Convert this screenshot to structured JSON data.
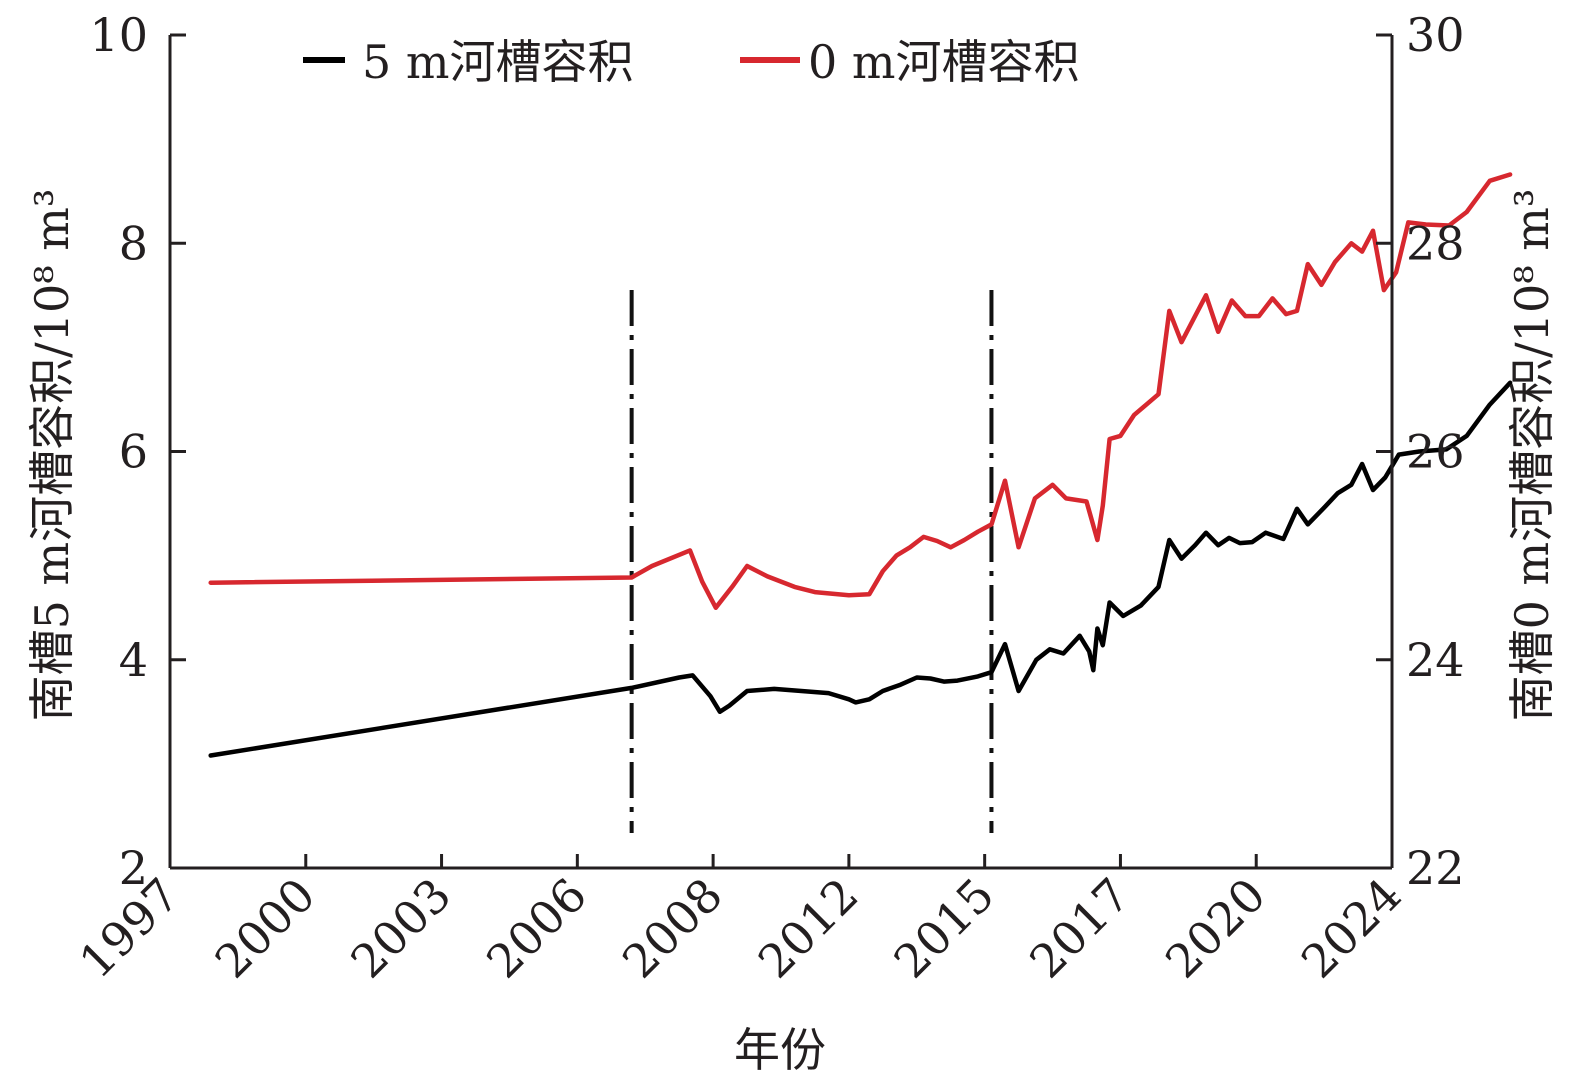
{
  "chart_data": {
    "type": "line",
    "title": "",
    "xlabel": "年份",
    "ylabel_left": "南槽5 m河槽容积/10⁸ m³",
    "ylabel_right": "南槽0 m河槽容积/10⁸ m³",
    "x_tick_labels": [
      "1997",
      "2000",
      "2003",
      "2006",
      "2008",
      "2012",
      "2015",
      "2017",
      "2020",
      "2024"
    ],
    "ylim_left": [
      2,
      10
    ],
    "yticks_left": [
      "2",
      "4",
      "6",
      "8",
      "10"
    ],
    "ylim_right": [
      22,
      30
    ],
    "yticks_right": [
      "22",
      "24",
      "26",
      "28",
      "30"
    ],
    "legend_position": "top",
    "vertical_markers": [
      3.4,
      6.05
    ],
    "series": [
      {
        "name": "5 m河槽容积",
        "axis": "left",
        "color": "#000000",
        "points": [
          [
            0.3,
            3.08
          ],
          [
            3.4,
            3.73
          ],
          [
            3.75,
            3.83
          ],
          [
            3.85,
            3.85
          ],
          [
            3.98,
            3.65
          ],
          [
            4.05,
            3.5
          ],
          [
            4.12,
            3.56
          ],
          [
            4.25,
            3.7
          ],
          [
            4.45,
            3.72
          ],
          [
            4.65,
            3.7
          ],
          [
            4.85,
            3.68
          ],
          [
            5.0,
            3.62
          ],
          [
            5.05,
            3.59
          ],
          [
            5.15,
            3.62
          ],
          [
            5.25,
            3.7
          ],
          [
            5.38,
            3.76
          ],
          [
            5.5,
            3.83
          ],
          [
            5.6,
            3.82
          ],
          [
            5.7,
            3.79
          ],
          [
            5.8,
            3.8
          ],
          [
            5.95,
            3.84
          ],
          [
            6.05,
            3.88
          ],
          [
            6.15,
            4.15
          ],
          [
            6.25,
            3.7
          ],
          [
            6.38,
            4.0
          ],
          [
            6.48,
            4.1
          ],
          [
            6.58,
            4.06
          ],
          [
            6.7,
            4.23
          ],
          [
            6.77,
            4.08
          ],
          [
            6.8,
            3.9
          ],
          [
            6.83,
            4.3
          ],
          [
            6.87,
            4.14
          ],
          [
            6.92,
            4.55
          ],
          [
            7.02,
            4.42
          ],
          [
            7.15,
            4.52
          ],
          [
            7.28,
            4.7
          ],
          [
            7.36,
            5.15
          ],
          [
            7.45,
            4.97
          ],
          [
            7.55,
            5.1
          ],
          [
            7.63,
            5.22
          ],
          [
            7.72,
            5.1
          ],
          [
            7.8,
            5.17
          ],
          [
            7.88,
            5.12
          ],
          [
            7.97,
            5.13
          ],
          [
            8.07,
            5.22
          ],
          [
            8.2,
            5.16
          ],
          [
            8.3,
            5.45
          ],
          [
            8.38,
            5.3
          ],
          [
            8.5,
            5.46
          ],
          [
            8.6,
            5.6
          ],
          [
            8.7,
            5.68
          ],
          [
            8.78,
            5.88
          ],
          [
            8.86,
            5.63
          ],
          [
            8.95,
            5.75
          ],
          [
            9.05,
            5.97
          ],
          [
            9.2,
            6.0
          ],
          [
            9.4,
            6.02
          ],
          [
            9.55,
            6.15
          ],
          [
            9.72,
            6.45
          ],
          [
            9.87,
            6.66
          ]
        ]
      },
      {
        "name": "0 m河槽容积",
        "axis": "right",
        "color": "#d7282f",
        "points": [
          [
            0.3,
            24.74
          ],
          [
            3.4,
            24.79
          ],
          [
            3.55,
            24.9
          ],
          [
            3.83,
            25.05
          ],
          [
            3.92,
            24.75
          ],
          [
            4.02,
            24.5
          ],
          [
            4.14,
            24.7
          ],
          [
            4.25,
            24.9
          ],
          [
            4.4,
            24.8
          ],
          [
            4.6,
            24.7
          ],
          [
            4.75,
            24.65
          ],
          [
            5.0,
            24.62
          ],
          [
            5.15,
            24.63
          ],
          [
            5.25,
            24.85
          ],
          [
            5.35,
            25.0
          ],
          [
            5.45,
            25.08
          ],
          [
            5.55,
            25.18
          ],
          [
            5.65,
            25.14
          ],
          [
            5.75,
            25.08
          ],
          [
            5.85,
            25.15
          ],
          [
            5.95,
            25.23
          ],
          [
            6.05,
            25.3
          ],
          [
            6.15,
            25.72
          ],
          [
            6.25,
            25.08
          ],
          [
            6.37,
            25.55
          ],
          [
            6.5,
            25.68
          ],
          [
            6.6,
            25.55
          ],
          [
            6.75,
            25.52
          ],
          [
            6.83,
            25.15
          ],
          [
            6.87,
            25.48
          ],
          [
            6.92,
            26.12
          ],
          [
            7.0,
            26.15
          ],
          [
            7.1,
            26.35
          ],
          [
            7.28,
            26.55
          ],
          [
            7.36,
            27.35
          ],
          [
            7.45,
            27.05
          ],
          [
            7.55,
            27.3
          ],
          [
            7.63,
            27.5
          ],
          [
            7.72,
            27.15
          ],
          [
            7.82,
            27.45
          ],
          [
            7.92,
            27.3
          ],
          [
            8.02,
            27.3
          ],
          [
            8.12,
            27.47
          ],
          [
            8.22,
            27.32
          ],
          [
            8.3,
            27.35
          ],
          [
            8.38,
            27.8
          ],
          [
            8.48,
            27.6
          ],
          [
            8.58,
            27.82
          ],
          [
            8.7,
            28.0
          ],
          [
            8.78,
            27.92
          ],
          [
            8.86,
            28.12
          ],
          [
            8.94,
            27.55
          ],
          [
            9.03,
            27.72
          ],
          [
            9.12,
            28.2
          ],
          [
            9.25,
            28.18
          ],
          [
            9.42,
            28.17
          ],
          [
            9.55,
            28.3
          ],
          [
            9.72,
            28.6
          ],
          [
            9.87,
            28.66
          ]
        ]
      }
    ]
  }
}
